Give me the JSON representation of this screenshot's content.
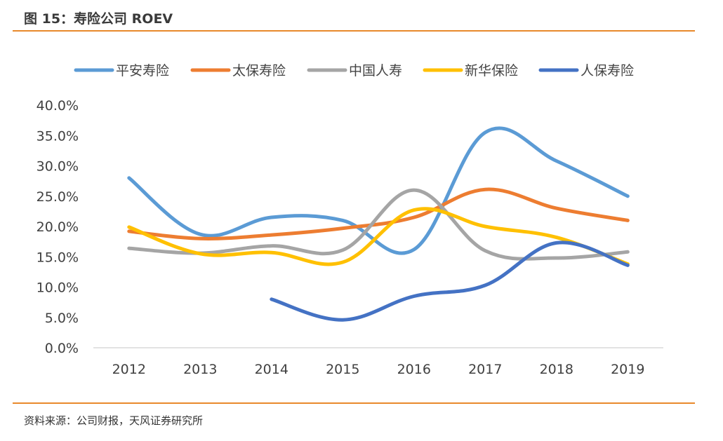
{
  "header": {
    "title": "图 15：寿险公司 ROEV"
  },
  "footer": {
    "source": "资料来源：公司财报，天风证券研究所"
  },
  "chart_data": {
    "type": "line",
    "title": "寿险公司 ROEV",
    "xlabel": "",
    "ylabel": "",
    "categories": [
      "2012",
      "2013",
      "2014",
      "2015",
      "2016",
      "2017",
      "2018",
      "2019"
    ],
    "ylim": [
      0,
      40
    ],
    "y_ticks": [
      "0.0%",
      "5.0%",
      "10.0%",
      "15.0%",
      "20.0%",
      "25.0%",
      "30.0%",
      "35.0%",
      "40.0%"
    ],
    "legend_position": "top",
    "grid": false,
    "series": [
      {
        "name": "平安寿险",
        "color": "#5b9bd5",
        "values": [
          28.0,
          18.7,
          21.5,
          21.0,
          16.2,
          35.5,
          30.8,
          25.0
        ]
      },
      {
        "name": "太保寿险",
        "color": "#ed7d31",
        "values": [
          19.2,
          18.0,
          18.6,
          19.7,
          21.5,
          26.1,
          23.0,
          21.0
        ]
      },
      {
        "name": "中国人寿",
        "color": "#a5a5a5",
        "values": [
          16.4,
          15.6,
          16.8,
          16.1,
          26.0,
          16.0,
          14.8,
          15.8
        ]
      },
      {
        "name": "新华保险",
        "color": "#ffc000",
        "values": [
          19.9,
          15.5,
          15.7,
          14.1,
          22.7,
          20.0,
          18.2,
          13.8
        ]
      },
      {
        "name": "人保寿险",
        "color": "#4472c4",
        "values": [
          null,
          null,
          8.0,
          4.6,
          8.5,
          10.3,
          17.3,
          13.6
        ]
      }
    ]
  }
}
